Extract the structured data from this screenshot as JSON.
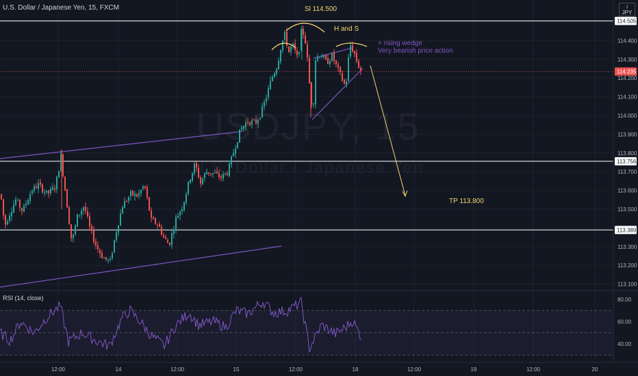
{
  "header": {
    "symbol_title": "U.S. Dollar / Japanese Yen, 15, FXCM",
    "currency_top": "JPY",
    "currency_sub": "↕"
  },
  "watermark": {
    "symbol": "USDJPY, 15",
    "name": "U.S. Dollar / Japanese Yen"
  },
  "indicator_label": "RSI (14, close)",
  "chart_data": [
    {
      "type": "candlestick",
      "title": "U.S. Dollar / Japanese Yen, 15, FXCM",
      "x_ticks": [
        "12:00",
        "14",
        "12:00",
        "15",
        "12:00",
        "18",
        "12:00",
        "19",
        "12:00",
        "20"
      ],
      "y_ticks": [
        "114.500",
        "114.400",
        "114.300",
        "114.200",
        "114.100",
        "114.000",
        "113.900",
        "113.800",
        "113.700",
        "113.600",
        "113.500",
        "113.400",
        "113.300",
        "113.200",
        "113.100"
      ],
      "ylim": [
        113.1,
        114.55
      ],
      "last_price": "114.235",
      "horizontal_levels": [
        {
          "label": "114.505",
          "value": 114.505
        },
        {
          "label": "113.756",
          "value": 113.756
        },
        {
          "label": "113.389",
          "value": 113.389
        }
      ],
      "annotations": [
        {
          "text": "Sl 114.500",
          "color": "#f2d66e"
        },
        {
          "text": "H and S",
          "color": "#f2d66e"
        },
        {
          "text": "+ rising wedge",
          "color": "#7e57c2"
        },
        {
          "text": "Very bearish price action",
          "color": "#7e57c2"
        },
        {
          "text": "TP 113.800",
          "color": "#f2d66e"
        }
      ],
      "colors": {
        "up": "#26a69a",
        "down": "#ef5350",
        "trend": "#7e57c2",
        "projection": "#f2d66e",
        "level": "#ffffff"
      }
    },
    {
      "type": "line",
      "title": "RSI (14, close)",
      "y_ticks": [
        "80.00",
        "60.00",
        "40.00"
      ],
      "ylim": [
        30,
        85
      ],
      "bands": [
        70,
        50,
        30
      ],
      "colors": {
        "line": "#7e57c2",
        "band": "rgba(126,87,194,0.08)"
      }
    }
  ]
}
